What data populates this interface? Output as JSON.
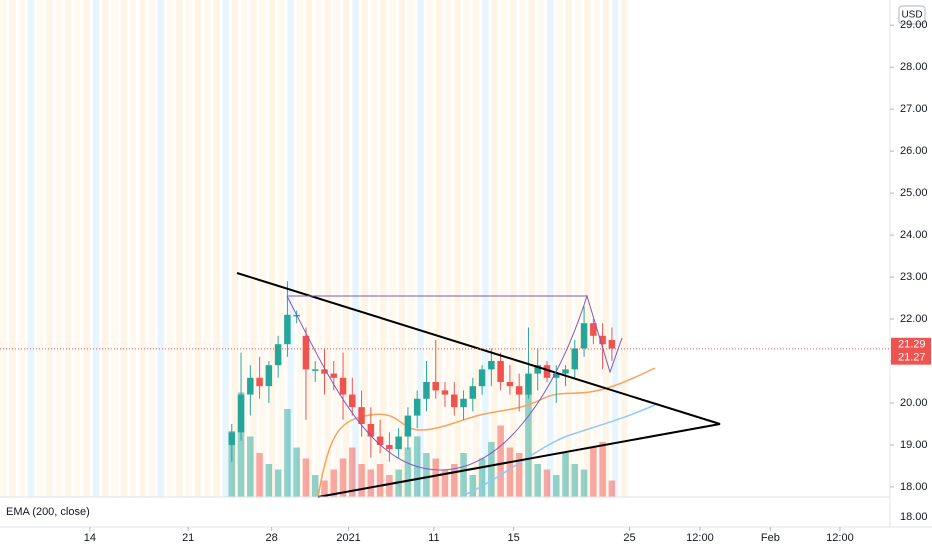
{
  "chart_data": {
    "type": "candlestick",
    "currency": "USD",
    "x": [
      25,
      26,
      27,
      28,
      29,
      30,
      31,
      32,
      33,
      34,
      35,
      36,
      37,
      38,
      39,
      40,
      41,
      42,
      43,
      44,
      45,
      46,
      47,
      48,
      49,
      50,
      51,
      52,
      53,
      54,
      55,
      56,
      57,
      58,
      59,
      60,
      61,
      62,
      63,
      64,
      65,
      66
    ],
    "open": [
      19.0,
      19.3,
      20.2,
      20.6,
      20.4,
      20.9,
      21.4,
      22.1,
      21.6,
      20.8,
      20.8,
      20.7,
      20.6,
      20.2,
      19.9,
      19.5,
      19.2,
      19.0,
      18.9,
      19.2,
      19.7,
      20.1,
      20.5,
      20.3,
      20.2,
      19.9,
      20.1,
      20.4,
      20.8,
      21.0,
      20.5,
      20.4,
      20.2,
      20.7,
      20.9,
      20.6,
      20.7,
      20.8,
      21.3,
      21.9,
      21.6,
      21.5
    ],
    "high": [
      19.5,
      21.2,
      20.9,
      21.1,
      21.0,
      21.6,
      22.9,
      22.2,
      21.8,
      21.0,
      21.3,
      21.0,
      21.2,
      20.6,
      20.3,
      19.9,
      19.6,
      19.3,
      19.4,
      19.9,
      20.3,
      21.0,
      21.5,
      20.5,
      20.5,
      20.3,
      20.6,
      20.9,
      21.3,
      21.2,
      20.9,
      20.7,
      21.8,
      21.3,
      21.0,
      20.9,
      20.9,
      21.5,
      22.3,
      22.0,
      21.9,
      21.8
    ],
    "low": [
      18.6,
      19.1,
      19.7,
      20.1,
      20.0,
      20.6,
      21.1,
      21.9,
      19.6,
      20.5,
      20.2,
      20.3,
      19.6,
      19.7,
      19.2,
      18.7,
      18.8,
      18.6,
      18.7,
      18.9,
      19.4,
      19.8,
      20.1,
      19.9,
      19.7,
      19.6,
      19.8,
      20.2,
      20.4,
      20.3,
      20.2,
      19.8,
      20.1,
      20.3,
      20.5,
      20.0,
      20.4,
      20.6,
      21.1,
      21.4,
      20.8,
      21.0
    ],
    "close": [
      19.3,
      20.2,
      20.6,
      20.4,
      20.9,
      21.4,
      22.1,
      22.1,
      20.8,
      20.8,
      20.7,
      20.6,
      20.2,
      19.9,
      19.5,
      19.2,
      19.0,
      18.9,
      19.2,
      19.7,
      20.1,
      20.5,
      20.3,
      20.2,
      19.9,
      20.1,
      20.4,
      20.8,
      21.0,
      20.5,
      20.4,
      20.2,
      20.7,
      20.9,
      20.6,
      20.7,
      20.8,
      21.3,
      21.9,
      21.6,
      21.4,
      21.3
    ],
    "volume": [
      60,
      95,
      55,
      40,
      30,
      25,
      80,
      45,
      35,
      20,
      15,
      25,
      35,
      45,
      30,
      25,
      30,
      20,
      25,
      45,
      55,
      40,
      35,
      25,
      30,
      40,
      20,
      35,
      50,
      65,
      45,
      40,
      95,
      30,
      25,
      20,
      40,
      30,
      25,
      45,
      50,
      15
    ],
    "up_color": "#26a69a",
    "down_color": "#ef5350",
    "xlim": [
      0,
      96
    ],
    "xticks": [
      {
        "value": 9.7,
        "label": "14"
      },
      {
        "value": 20.3,
        "label": "21"
      },
      {
        "value": 29.3,
        "label": "28"
      },
      {
        "value": 37.6,
        "label": "2021"
      },
      {
        "value": 46.8,
        "label": "11"
      },
      {
        "value": 55.4,
        "label": "15"
      },
      {
        "value": 67.9,
        "label": "25"
      },
      {
        "value": 75.5,
        "label": "12:00"
      },
      {
        "value": 83.1,
        "label": "Feb"
      },
      {
        "value": 90.6,
        "label": "12:00"
      }
    ],
    "ylim": [
      17.76,
      29.6
    ],
    "yticks": [
      {
        "value": 18,
        "label": "18.00"
      },
      {
        "value": 19,
        "label": "19.00"
      },
      {
        "value": 20,
        "label": "20.00"
      },
      {
        "value": 21,
        "label": "21.00"
      },
      {
        "value": 22,
        "label": "22.00"
      },
      {
        "value": 23,
        "label": "23.00"
      },
      {
        "value": 24,
        "label": "24.00"
      },
      {
        "value": 25,
        "label": "25.00"
      },
      {
        "value": 26,
        "label": "26.00"
      },
      {
        "value": 27,
        "label": "27.00"
      },
      {
        "value": 28,
        "label": "28.00"
      },
      {
        "value": 29,
        "label": "29.00"
      }
    ],
    "last_prices": [
      21.29,
      21.27
    ],
    "indicator_label": "EMA (200, close)",
    "indicator_tick": "18.00"
  }
}
